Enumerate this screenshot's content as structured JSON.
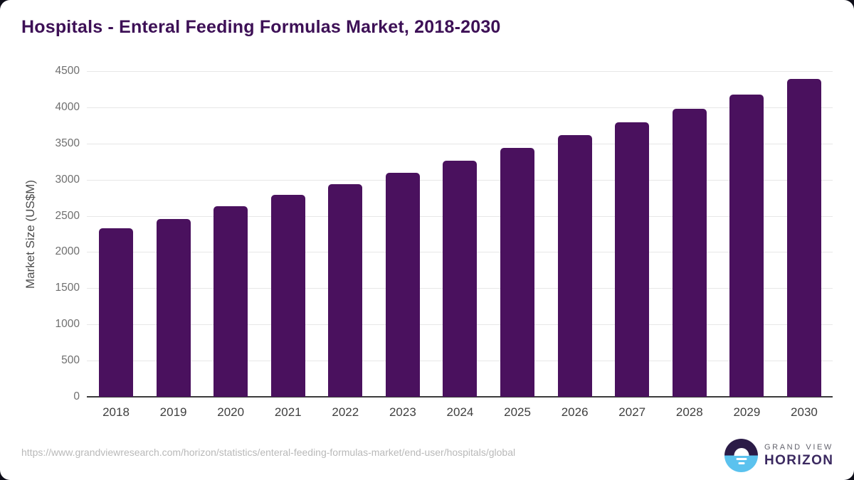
{
  "title": "Hospitals - Enteral Feeding Formulas Market, 2018-2030",
  "chart_data": {
    "type": "bar",
    "title": "Hospitals - Enteral Feeding Formulas Market, 2018-2030",
    "categories": [
      "2018",
      "2019",
      "2020",
      "2021",
      "2022",
      "2023",
      "2024",
      "2025",
      "2026",
      "2027",
      "2028",
      "2029",
      "2030"
    ],
    "values": [
      2330,
      2455,
      2635,
      2790,
      2935,
      3100,
      3260,
      3435,
      3615,
      3795,
      3980,
      4175,
      4390
    ],
    "xlabel": "",
    "ylabel": "Market Size (US$M)",
    "ylim": [
      0,
      4500
    ],
    "yticks": [
      0,
      500,
      1000,
      1500,
      2000,
      2500,
      3000,
      3500,
      4000,
      4500
    ],
    "grid": true,
    "legend": "none",
    "bar_color": "#4a115e"
  },
  "footer": {
    "source_url": "https://www.grandviewresearch.com/horizon/statistics/enteral-feeding-formulas-market/end-user/hospitals/global",
    "logo": {
      "top": "GRAND VIEW",
      "bottom": "HORIZON"
    }
  },
  "colors": {
    "bar": "#4a115e",
    "title": "#3d1056",
    "gridline": "#e7e7e7",
    "axis_line": "#3c3c3c",
    "ytick_label": "#6f6f6f",
    "xtick_label": "#3f3f3f",
    "url_text": "#b9b9b9",
    "logo_dark": "#2b1b47",
    "logo_blue": "#5bc2ee",
    "page_background": "#0d0d18"
  }
}
